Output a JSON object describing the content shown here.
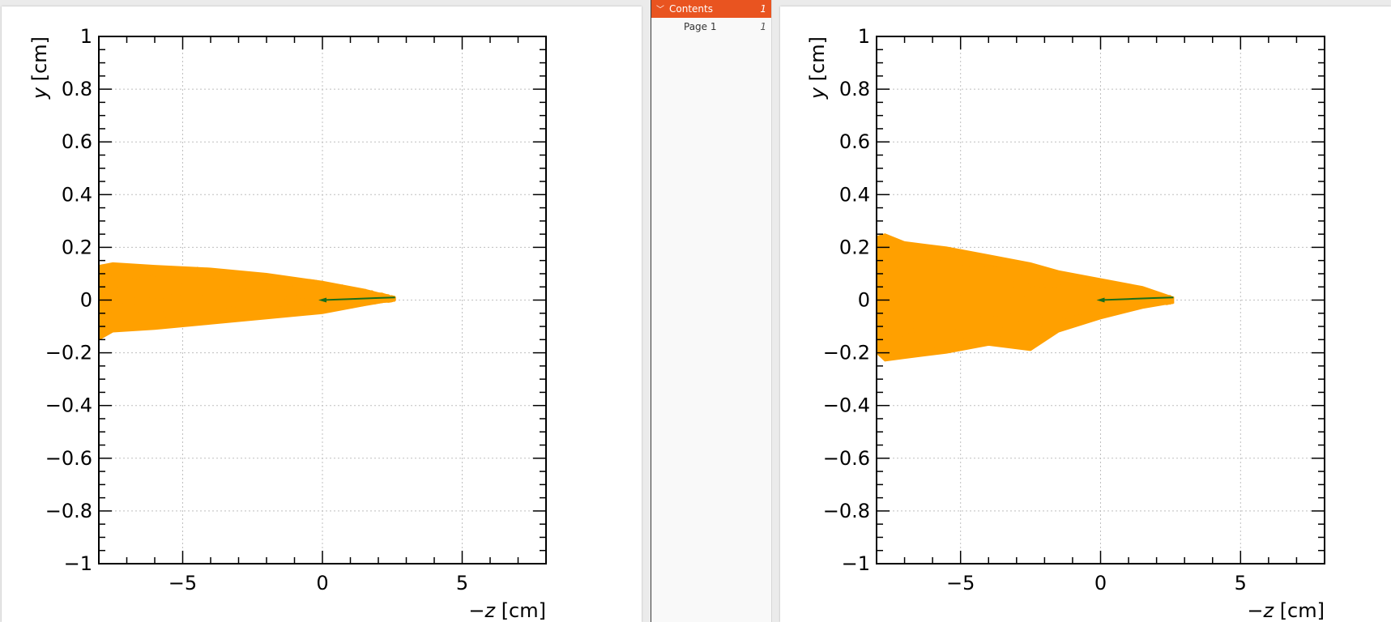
{
  "sidebar": {
    "items": [
      {
        "label": "Contents",
        "page": "1",
        "expanded": true,
        "active": true
      },
      {
        "label": "Page 1",
        "page": "1",
        "active": false
      }
    ]
  },
  "colors": {
    "shower": "#ffa000",
    "primary_track": "#1a6e1a",
    "accent": "#e95420"
  },
  "chart_data": [
    {
      "type": "line",
      "xlabel_var": "−z",
      "xlabel_unit": " [cm]",
      "ylabel_var": "y",
      "ylabel_unit": " [cm]",
      "xlim": [
        -8,
        8
      ],
      "ylim": [
        -1,
        1
      ],
      "x_ticks": [
        -5,
        0,
        5
      ],
      "x_tick_labels": [
        "−5",
        "0",
        "5"
      ],
      "y_ticks": [
        -1,
        -0.8,
        -0.6,
        -0.4,
        -0.2,
        0,
        0.2,
        0.4,
        0.6,
        0.8,
        1
      ],
      "y_tick_labels": [
        "−1",
        "−0.8",
        "−0.6",
        "−0.4",
        "−0.2",
        "0",
        "0.2",
        "0.4",
        "0.6",
        "0.8",
        "1"
      ],
      "grid": true,
      "series": [
        {
          "role": "secondary tracks envelope",
          "x": [
            2.6,
            1.5,
            0,
            -2,
            -4,
            -6,
            -7.5,
            -8
          ],
          "y_upper": [
            0.01,
            0.04,
            0.07,
            0.1,
            0.12,
            0.13,
            0.14,
            0.13
          ],
          "y_lower": [
            0.0,
            -0.02,
            -0.05,
            -0.07,
            -0.09,
            -0.11,
            -0.12,
            -0.15
          ]
        },
        {
          "role": "primary track",
          "x": [
            0,
            1,
            2,
            2.6
          ],
          "y": [
            0.0,
            0.004,
            0.008,
            0.01
          ]
        }
      ]
    },
    {
      "type": "line",
      "xlabel_var": "−z",
      "xlabel_unit": " [cm]",
      "ylabel_var": "y",
      "ylabel_unit": " [cm]",
      "xlim": [
        -8,
        8
      ],
      "ylim": [
        -1,
        1
      ],
      "x_ticks": [
        -5,
        0,
        5
      ],
      "x_tick_labels": [
        "−5",
        "0",
        "5"
      ],
      "y_ticks": [
        -1,
        -0.8,
        -0.6,
        -0.4,
        -0.2,
        0,
        0.2,
        0.4,
        0.6,
        0.8,
        1
      ],
      "y_tick_labels": [
        "−1",
        "−0.8",
        "−0.6",
        "−0.4",
        "−0.2",
        "0",
        "0.2",
        "0.4",
        "0.6",
        "0.8",
        "1"
      ],
      "grid": true,
      "series": [
        {
          "role": "secondary tracks envelope",
          "x": [
            2.6,
            1.5,
            0,
            -1.5,
            -2.5,
            -4,
            -5.5,
            -7,
            -7.7,
            -8
          ],
          "y_upper": [
            0.01,
            0.05,
            0.08,
            0.11,
            0.14,
            0.17,
            0.2,
            0.22,
            0.25,
            0.24
          ],
          "y_lower": [
            -0.01,
            -0.03,
            -0.07,
            -0.12,
            -0.19,
            -0.17,
            -0.2,
            -0.22,
            -0.23,
            -0.2
          ]
        },
        {
          "role": "primary track",
          "x": [
            0,
            1,
            2,
            2.6
          ],
          "y": [
            0.0,
            0.004,
            0.008,
            0.01
          ]
        }
      ]
    }
  ]
}
